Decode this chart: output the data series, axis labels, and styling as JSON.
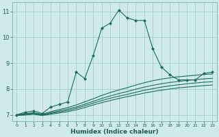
{
  "bg_color": "#ceeaea",
  "grid_color": "#a8cccc",
  "line_color": "#1e6b5e",
  "xlabel": "Humidex (Indice chaleur)",
  "xlim": [
    -0.5,
    23.5
  ],
  "ylim": [
    6.75,
    11.35
  ],
  "yticks": [
    7,
    8,
    9,
    10,
    11
  ],
  "xticks": [
    0,
    1,
    2,
    3,
    4,
    5,
    6,
    7,
    8,
    9,
    10,
    11,
    12,
    13,
    14,
    15,
    16,
    17,
    18,
    19,
    20,
    21,
    22,
    23
  ],
  "lines": [
    {
      "x": [
        0,
        1,
        2,
        3,
        4,
        5,
        6,
        7,
        8,
        9,
        10,
        11,
        12,
        13,
        14,
        15,
        16,
        17,
        18,
        19,
        20,
        21,
        22,
        23
      ],
      "y": [
        7.0,
        7.1,
        7.15,
        7.05,
        7.3,
        7.4,
        7.5,
        8.65,
        8.4,
        9.3,
        10.35,
        10.55,
        11.05,
        10.75,
        10.65,
        10.65,
        9.55,
        8.85,
        8.55,
        8.35,
        8.35,
        8.35,
        8.6,
        8.65
      ],
      "has_markers": true
    },
    {
      "x": [
        0,
        1,
        2,
        3,
        4,
        5,
        6,
        7,
        8,
        9,
        10,
        11,
        12,
        13,
        14,
        15,
        16,
        17,
        18,
        19,
        20,
        21,
        22,
        23
      ],
      "y": [
        7.0,
        7.05,
        7.08,
        7.02,
        7.12,
        7.2,
        7.28,
        7.38,
        7.5,
        7.62,
        7.75,
        7.86,
        7.96,
        8.05,
        8.15,
        8.24,
        8.32,
        8.38,
        8.43,
        8.47,
        8.5,
        8.53,
        8.56,
        8.58
      ],
      "has_markers": false
    },
    {
      "x": [
        0,
        1,
        2,
        3,
        4,
        5,
        6,
        7,
        8,
        9,
        10,
        11,
        12,
        13,
        14,
        15,
        16,
        17,
        18,
        19,
        20,
        21,
        22,
        23
      ],
      "y": [
        6.99,
        7.03,
        7.06,
        7.0,
        7.08,
        7.15,
        7.22,
        7.3,
        7.41,
        7.52,
        7.63,
        7.73,
        7.82,
        7.9,
        7.99,
        8.07,
        8.14,
        8.2,
        8.25,
        8.29,
        8.33,
        8.36,
        8.39,
        8.41
      ],
      "has_markers": false
    },
    {
      "x": [
        0,
        1,
        2,
        3,
        4,
        5,
        6,
        7,
        8,
        9,
        10,
        11,
        12,
        13,
        14,
        15,
        16,
        17,
        18,
        19,
        20,
        21,
        22,
        23
      ],
      "y": [
        6.98,
        7.01,
        7.04,
        6.98,
        7.05,
        7.11,
        7.17,
        7.25,
        7.35,
        7.45,
        7.55,
        7.64,
        7.72,
        7.79,
        7.87,
        7.95,
        8.01,
        8.07,
        8.12,
        8.16,
        8.2,
        8.23,
        8.26,
        8.28
      ],
      "has_markers": false
    },
    {
      "x": [
        0,
        1,
        2,
        3,
        4,
        5,
        6,
        7,
        8,
        9,
        10,
        11,
        12,
        13,
        14,
        15,
        16,
        17,
        18,
        19,
        20,
        21,
        22,
        23
      ],
      "y": [
        6.97,
        6.99,
        7.02,
        6.97,
        7.02,
        7.07,
        7.12,
        7.19,
        7.28,
        7.38,
        7.47,
        7.55,
        7.63,
        7.7,
        7.77,
        7.84,
        7.9,
        7.95,
        8.0,
        8.04,
        8.07,
        8.1,
        8.13,
        8.15
      ],
      "has_markers": false
    }
  ]
}
